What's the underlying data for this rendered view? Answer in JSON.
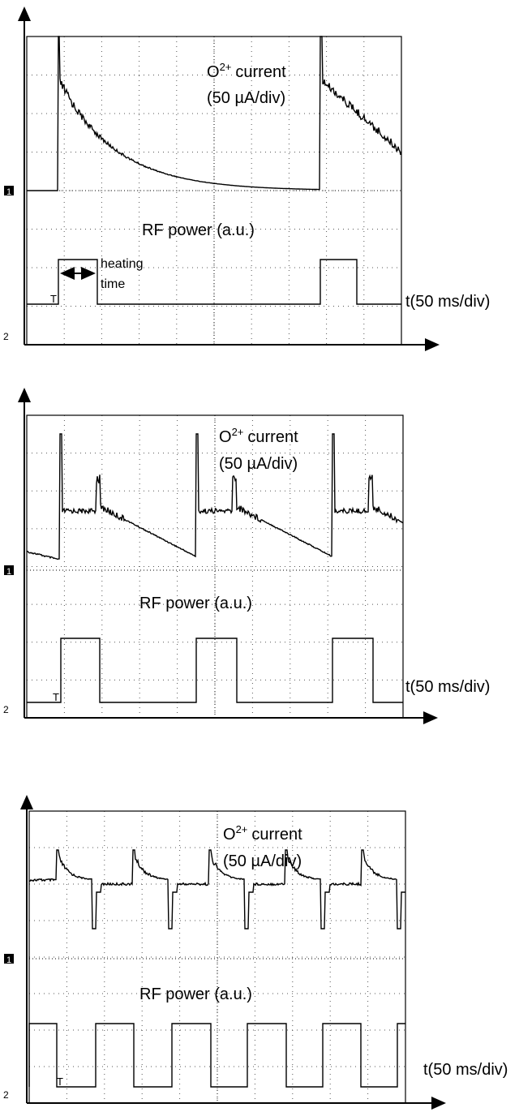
{
  "panels": [
    {
      "current_label": {
        "species": "O",
        "charge": "2+",
        "word": "current"
      },
      "current_scale": "(50 µA/div)",
      "rf_label": "RF power (a.u.)",
      "time_scale": "t(50 ms/div)",
      "ch1_marker": "1",
      "ch2_marker": "2",
      "trigger_marker": "T",
      "annotation": {
        "line1": "heating",
        "line2": "time"
      }
    },
    {
      "current_label": {
        "species": "O",
        "charge": "2+",
        "word": "current"
      },
      "current_scale": "(50 µA/div)",
      "rf_label": "RF power (a.u.)",
      "time_scale": "t(50 ms/div)",
      "ch1_marker": "1",
      "ch2_marker": "2",
      "trigger_marker": "T"
    },
    {
      "current_label": {
        "species": "O",
        "charge": "2+",
        "word": "current"
      },
      "current_scale": "(50 µA/div)",
      "rf_label": "RF power (a.u.)",
      "time_scale": "t(50 ms/div)",
      "ch1_marker": "1",
      "ch2_marker": "2",
      "trigger_marker": "T"
    }
  ]
}
